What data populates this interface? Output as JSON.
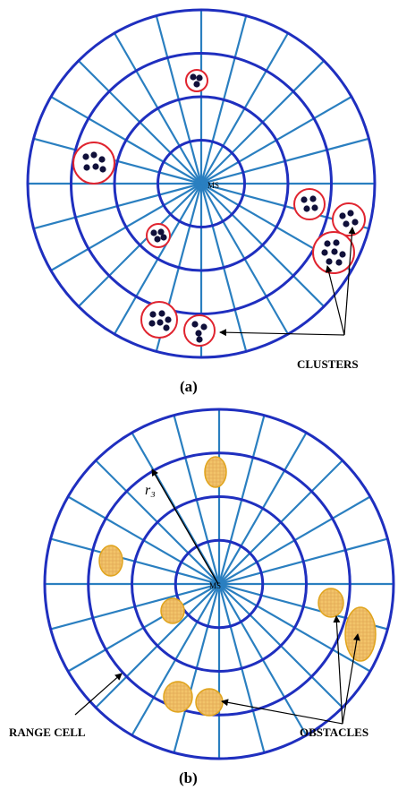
{
  "panel_a": {
    "center_label": "MS",
    "annotation": "CLUSTERS",
    "caption": "(a)"
  },
  "panel_b": {
    "center_label": "MS",
    "radius_label": "r₃",
    "left_annotation": "RANGE CELL",
    "right_annotation": "OBSTACLES",
    "caption": "(b)"
  },
  "colors": {
    "ring": "#1f2fbf",
    "spoke": "#2a7fc0",
    "cluster_circle": "#e0242f",
    "node": "#10103a",
    "obstacle_fill": "#f2c46a",
    "obstacle_stroke": "#e0a41c",
    "arrow": "#000000"
  }
}
